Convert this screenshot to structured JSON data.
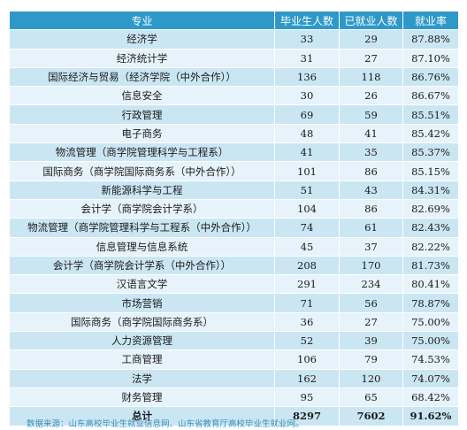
{
  "columns": [
    "专业",
    "毕业生人数",
    "已就业人数",
    "就业率"
  ],
  "rows": [
    [
      "经济学",
      "33",
      "29",
      "87.88%"
    ],
    [
      "经济统计学",
      "31",
      "27",
      "87.10%"
    ],
    [
      "国际经济与贸易（经济学院（中外合作））",
      "136",
      "118",
      "86.76%"
    ],
    [
      "信息安全",
      "30",
      "26",
      "86.67%"
    ],
    [
      "行政管理",
      "69",
      "59",
      "85.51%"
    ],
    [
      "电子商务",
      "48",
      "41",
      "85.42%"
    ],
    [
      "物流管理（商学院管理科学与工程系）",
      "41",
      "35",
      "85.37%"
    ],
    [
      "国际商务（商学院国际商务系（中外合作））",
      "101",
      "86",
      "85.15%"
    ],
    [
      "新能源科学与工程",
      "51",
      "43",
      "84.31%"
    ],
    [
      "会计学（商学院会计学系）",
      "104",
      "86",
      "82.69%"
    ],
    [
      "物流管理（商学院管理科学与工程系（中外合作））",
      "74",
      "61",
      "82.43%"
    ],
    [
      "信息管理与信息系统",
      "45",
      "37",
      "82.22%"
    ],
    [
      "会计学（商学院会计学系（中外合作））",
      "208",
      "170",
      "81.73%"
    ],
    [
      "汉语言文学",
      "291",
      "234",
      "80.41%"
    ],
    [
      "市场营销",
      "71",
      "56",
      "78.87%"
    ],
    [
      "国际商务（商学院国际商务系）",
      "36",
      "27",
      "75.00%"
    ],
    [
      "人力资源管理",
      "52",
      "39",
      "75.00%"
    ],
    [
      "工商管理",
      "106",
      "79",
      "74.53%"
    ],
    [
      "法学",
      "162",
      "120",
      "74.07%"
    ],
    [
      "财务管理",
      "95",
      "65",
      "68.42%"
    ]
  ],
  "total": [
    "总计",
    "8297",
    "7602",
    "91.62%"
  ],
  "source_note": "数据来源：山东高校毕业生就业信息网、山东省教育厅高校毕业生就业网。",
  "colors": {
    "header_bg": "#2e99c9",
    "row_bg_a": "#cbe6f3",
    "row_bg_b": "#e6f3fa",
    "source_text": "#3a8fb8"
  }
}
